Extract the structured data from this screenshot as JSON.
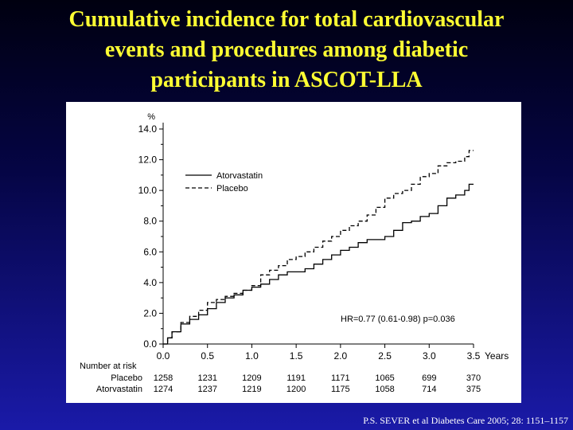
{
  "slide": {
    "title_lines": [
      "Cumulative incidence for total cardiovascular",
      "events and procedures among diabetic",
      "participants in ASCOT-LLA"
    ],
    "citation": "P.S. SEVER et al Diabetes Care 2005; 28: 1151–1157"
  },
  "chart_data": {
    "type": "line",
    "ylabel": "%",
    "xlabel": "Years",
    "xlim": [
      0,
      3.5
    ],
    "ylim": [
      0,
      14
    ],
    "x_ticks": [
      "0.0",
      "0.5",
      "1.0",
      "1.5",
      "2.0",
      "2.5",
      "3.0",
      "3.5"
    ],
    "y_ticks": [
      "0.0",
      "2.0",
      "4.0",
      "6.0",
      "8.0",
      "10.0",
      "12.0",
      "14.0"
    ],
    "grid": false,
    "legend_position": "upper-left",
    "annotation": "HR=0.77 (0.61-0.98)  p=0.036",
    "series": [
      {
        "name": "Atorvastatin",
        "style": "solid",
        "x": [
          0,
          0.05,
          0.1,
          0.2,
          0.3,
          0.4,
          0.5,
          0.6,
          0.7,
          0.8,
          0.9,
          1.0,
          1.1,
          1.2,
          1.3,
          1.4,
          1.5,
          1.6,
          1.7,
          1.8,
          1.9,
          2.0,
          2.1,
          2.2,
          2.3,
          2.4,
          2.5,
          2.6,
          2.7,
          2.8,
          2.9,
          3.0,
          3.1,
          3.2,
          3.3,
          3.4,
          3.45,
          3.5
        ],
        "y": [
          0,
          0.4,
          0.8,
          1.3,
          1.6,
          1.9,
          2.3,
          2.7,
          3.0,
          3.2,
          3.5,
          3.7,
          3.9,
          4.2,
          4.5,
          4.7,
          4.7,
          4.9,
          5.2,
          5.5,
          5.8,
          6.1,
          6.3,
          6.6,
          6.8,
          6.8,
          7.0,
          7.4,
          7.9,
          8.0,
          8.3,
          8.5,
          9.0,
          9.5,
          9.7,
          10.0,
          10.4,
          10.4
        ]
      },
      {
        "name": "Placebo",
        "style": "dashed",
        "x": [
          0,
          0.05,
          0.1,
          0.2,
          0.3,
          0.4,
          0.5,
          0.6,
          0.7,
          0.8,
          0.9,
          1.0,
          1.1,
          1.2,
          1.3,
          1.4,
          1.5,
          1.6,
          1.7,
          1.8,
          1.9,
          2.0,
          2.1,
          2.2,
          2.3,
          2.4,
          2.5,
          2.6,
          2.7,
          2.8,
          2.9,
          3.0,
          3.1,
          3.2,
          3.3,
          3.4,
          3.45,
          3.5
        ],
        "y": [
          0,
          0.4,
          0.8,
          1.4,
          1.8,
          2.2,
          2.7,
          2.9,
          3.1,
          3.3,
          3.5,
          3.8,
          4.5,
          4.8,
          5.1,
          5.5,
          5.7,
          6.0,
          6.3,
          6.7,
          7.0,
          7.4,
          7.7,
          8.0,
          8.4,
          8.9,
          9.5,
          9.8,
          10.0,
          10.4,
          10.9,
          11.1,
          11.6,
          11.8,
          11.9,
          12.2,
          12.6,
          12.6
        ]
      }
    ],
    "risk_table": {
      "label": "Number at risk",
      "rows": [
        {
          "name": "Placebo",
          "values": [
            "1258",
            "1231",
            "1209",
            "1191",
            "1171",
            "1065",
            "699",
            "370"
          ]
        },
        {
          "name": "Atorvastatin",
          "values": [
            "1274",
            "1237",
            "1219",
            "1200",
            "1175",
            "1058",
            "714",
            "375"
          ]
        }
      ]
    }
  }
}
